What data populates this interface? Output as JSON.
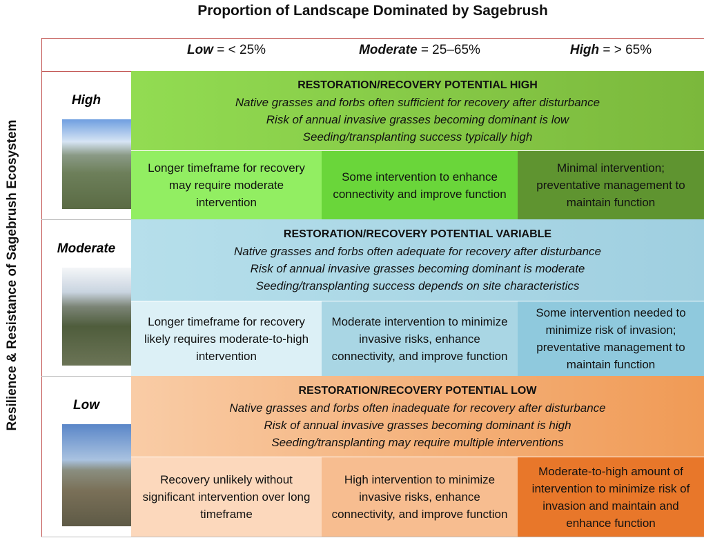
{
  "header": {
    "title": "Proportion of Landscape Dominated by Sagebrush",
    "columns": [
      {
        "level": "Low",
        "range": "= < 25%"
      },
      {
        "level": "Moderate",
        "range": "= 25–65%"
      },
      {
        "level": "High",
        "range": "= > 65%"
      }
    ]
  },
  "side_label": "Resilience & Resistance of Sagebrush Ecosystem",
  "rows": [
    {
      "label": "High",
      "band": {
        "heading": "RESTORATION/RECOVERY POTENTIAL HIGH",
        "lines": [
          "Native grasses and forbs often sufficient for recovery after disturbance",
          "Risk of annual invasive grasses becoming dominant is low",
          "Seeding/transplanting success typically high"
        ]
      },
      "cells": [
        "Longer timeframe for recovery may require moderate intervention",
        "Some intervention to enhance connectivity and improve function",
        "Minimal intervention; preventative management to maintain function"
      ]
    },
    {
      "label": "Moderate",
      "band": {
        "heading": "RESTORATION/RECOVERY POTENTIAL VARIABLE",
        "lines": [
          "Native grasses and forbs often adequate for recovery after disturbance",
          "Risk of annual invasive grasses becoming dominant is moderate",
          "Seeding/transplanting success depends on site characteristics"
        ]
      },
      "cells": [
        "Longer timeframe for recovery likely requires moderate-to-high intervention",
        "Moderate intervention to minimize invasive risks, enhance connectivity, and improve function",
        "Some intervention needed to minimize risk of invasion; preventative management to maintain function"
      ]
    },
    {
      "label": "Low",
      "band": {
        "heading": "RESTORATION/RECOVERY POTENTIAL LOW",
        "lines": [
          "Native grasses and forbs often inadequate for recovery after disturbance",
          "Risk of annual invasive grasses becoming dominant is high",
          "Seeding/transplanting may require multiple interventions"
        ]
      },
      "cells": [
        "Recovery unlikely without significant intervention over long timeframe",
        "High intervention to minimize invasive risks, enhance connectivity, and improve function",
        "Moderate-to-high amount of intervention to minimize risk of invasion and maintain and enhance function"
      ]
    }
  ]
}
